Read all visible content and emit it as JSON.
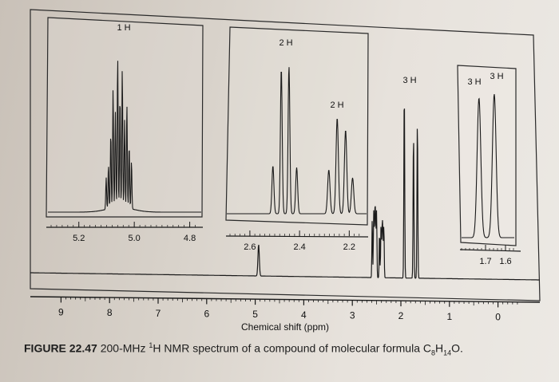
{
  "figure": {
    "label": "FIGURE 22.47",
    "text_before": " 200-MHz ",
    "sup_1": "1",
    "text_h": "H NMR spectrum of a compound of molecular formula C",
    "sub_8": "8",
    "text_h2": "H",
    "sub_14": "14",
    "text_end": "O."
  },
  "chart_data": {
    "type": "line",
    "xlabel": "Chemical shift (ppm)",
    "xlim": [
      9.5,
      -0.5
    ],
    "x_ticks": [
      "9",
      "8",
      "7",
      "6",
      "5",
      "4",
      "3",
      "2",
      "1",
      "0"
    ],
    "main_peaks": [
      {
        "ppm": 4.93,
        "height": 0.12,
        "mult": "t"
      },
      {
        "ppm": 2.53,
        "height": 0.28,
        "mult": "q"
      },
      {
        "ppm": 2.38,
        "height": 0.22,
        "mult": "m"
      },
      {
        "ppm": 1.93,
        "height": 0.72,
        "mult": "s"
      },
      {
        "ppm": 1.74,
        "height": 0.55,
        "mult": "s"
      },
      {
        "ppm": 1.66,
        "height": 0.6,
        "mult": "s"
      }
    ],
    "insets": [
      {
        "name": "inset-5ppm",
        "x_ticks": [
          "5.2",
          "5.0",
          "4.8"
        ],
        "xlim": [
          5.3,
          4.77
        ],
        "annotations": [
          {
            "text": "1 H",
            "ppm": 4.98
          }
        ]
      },
      {
        "name": "inset-2.4ppm",
        "x_ticks": [
          "2.6",
          "2.4",
          "2.2"
        ],
        "xlim": [
          2.68,
          2.14
        ],
        "annotations": [
          {
            "text": "2 H",
            "ppm": 2.48
          },
          {
            "text": "2 H",
            "ppm": 2.28
          }
        ]
      },
      {
        "name": "inset-1.7ppm",
        "x_ticks": [
          "1.7",
          "1.6"
        ],
        "xlim": [
          1.82,
          1.54
        ],
        "annotations": [
          {
            "text": "3 H",
            "ppm": 1.71
          },
          {
            "text": "3 H",
            "ppm": 1.64
          }
        ]
      }
    ],
    "main_annotations": [
      {
        "text": "3 H",
        "ppm": 1.93
      }
    ]
  }
}
